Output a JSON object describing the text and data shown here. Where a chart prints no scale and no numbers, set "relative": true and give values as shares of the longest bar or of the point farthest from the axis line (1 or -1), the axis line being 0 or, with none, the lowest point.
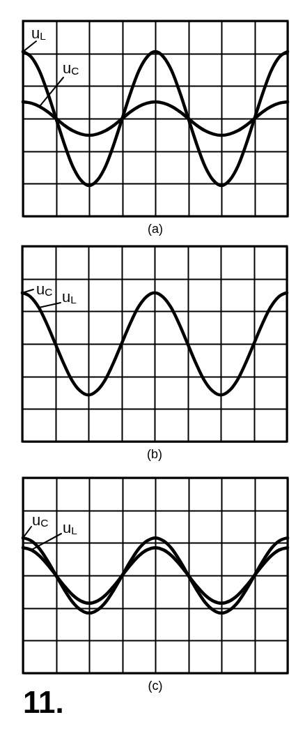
{
  "chart_data": [
    {
      "type": "line",
      "title": "(a)",
      "relative": true,
      "grid": true,
      "line_style": "solid",
      "categories": [
        null,
        null,
        null,
        null,
        null,
        null,
        null,
        null,
        null,
        null,
        null,
        null,
        null,
        null,
        null,
        null,
        null,
        null,
        null,
        null,
        null,
        null,
        null,
        null,
        null,
        null,
        null,
        null,
        null,
        null,
        null,
        null,
        null
      ],
      "series": [
        {
          "name": "u$_{L}$",
          "color": "#000000",
          "values": [
            1,
            0.92,
            0.71,
            0.38,
            0,
            -0.38,
            -0.71,
            -0.92,
            -1,
            -0.92,
            -0.71,
            -0.38,
            0,
            0.38,
            0.71,
            0.92,
            1,
            0.92,
            0.71,
            0.38,
            0,
            -0.38,
            -0.71,
            -0.92,
            -1,
            -0.92,
            -0.71,
            -0.38,
            0,
            0.38,
            0.71,
            0.92,
            1
          ]
        },
        {
          "name": "u$_{C}$",
          "color": "#000000",
          "values": [
            0.25,
            0.23,
            0.18,
            0.1,
            0,
            -0.1,
            -0.18,
            -0.23,
            -0.25,
            -0.23,
            -0.18,
            -0.1,
            0,
            0.1,
            0.18,
            0.23,
            0.25,
            0.23,
            0.18,
            0.1,
            0,
            -0.1,
            -0.18,
            -0.23,
            -0.25,
            -0.23,
            -0.18,
            -0.1,
            0,
            0.1,
            0.18,
            0.23,
            0.25
          ]
        }
      ]
    },
    {
      "type": "line",
      "title": "(b)",
      "relative": true,
      "grid": true,
      "line_style": "solid",
      "annotations": [
        "u$_{C}$",
        "u$_{L}$"
      ],
      "categories": [
        null,
        null,
        null,
        null,
        null,
        null,
        null,
        null,
        null,
        null,
        null,
        null,
        null,
        null,
        null,
        null,
        null,
        null,
        null,
        null,
        null,
        null,
        null,
        null,
        null,
        null,
        null,
        null,
        null,
        null,
        null,
        null,
        null
      ],
      "series": [
        {
          "color": "#000000",
          "values": [
            1,
            0.92,
            0.71,
            0.38,
            0,
            -0.38,
            -0.71,
            -0.92,
            -1,
            -0.92,
            -0.71,
            -0.38,
            0,
            0.38,
            0.71,
            0.92,
            1,
            0.92,
            0.71,
            0.38,
            0,
            -0.38,
            -0.71,
            -0.92,
            -1,
            -0.92,
            -0.71,
            -0.38,
            0,
            0.38,
            0.71,
            0.92,
            1
          ]
        }
      ]
    },
    {
      "type": "line",
      "title": "(c)",
      "relative": true,
      "grid": true,
      "line_style": "solid",
      "annotations": [
        "11."
      ],
      "categories": [
        null,
        null,
        null,
        null,
        null,
        null,
        null,
        null,
        null,
        null,
        null,
        null,
        null,
        null,
        null,
        null,
        null,
        null,
        null,
        null,
        null,
        null,
        null,
        null,
        null,
        null,
        null,
        null,
        null,
        null,
        null,
        null,
        null
      ],
      "series": [
        {
          "name": "u$_{C}$",
          "color": "#000000",
          "values": [
            1,
            0.92,
            0.71,
            0.38,
            0,
            -0.38,
            -0.71,
            -0.92,
            -1,
            -0.92,
            -0.71,
            -0.38,
            0,
            0.38,
            0.71,
            0.92,
            1,
            0.92,
            0.71,
            0.38,
            0,
            -0.38,
            -0.71,
            -0.92,
            -1,
            -0.92,
            -0.71,
            -0.38,
            0,
            0.38,
            0.71,
            0.92,
            1
          ]
        },
        {
          "name": "u$_{L}$",
          "color": "#000000",
          "values": [
            0.74,
            0.68,
            0.52,
            0.28,
            0,
            -0.28,
            -0.52,
            -0.68,
            -0.74,
            -0.68,
            -0.52,
            -0.28,
            0,
            0.28,
            0.52,
            0.68,
            0.74,
            0.68,
            0.52,
            0.28,
            0,
            -0.28,
            -0.52,
            -0.68,
            -0.74,
            -0.68,
            -0.52,
            -0.28,
            0,
            0.28,
            0.52,
            0.68,
            0.74
          ]
        }
      ]
    }
  ]
}
